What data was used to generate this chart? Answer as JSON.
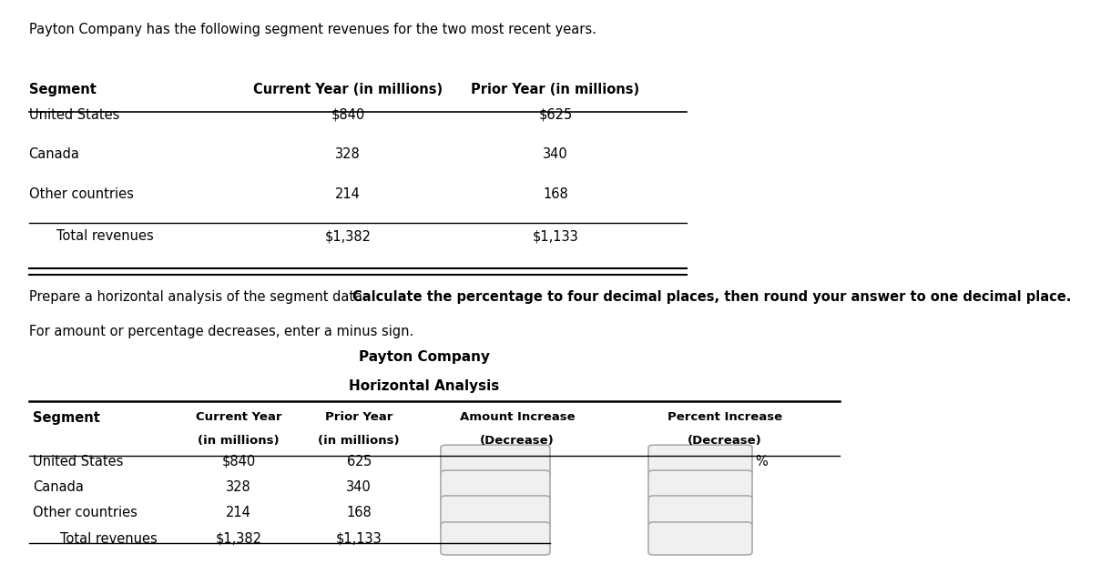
{
  "intro_text": "Payton Company has the following segment revenues for the two most recent years.",
  "instr_plain": "Prepare a horizontal analysis of the segment data. ",
  "instr_bold": "Calculate the percentage to four decimal places, then round your answer to one decimal place.",
  "instr_line2": "For amount or percentage decreases, enter a minus sign.",
  "top_headers": [
    "Segment",
    "Current Year (in millions)",
    "Prior Year (in millions)"
  ],
  "top_rows": [
    [
      "United States",
      "$840",
      "$625"
    ],
    [
      "Canada",
      "328",
      "340"
    ],
    [
      "Other countries",
      "214",
      "168"
    ],
    [
      "Total revenues",
      "$1,382",
      "$1,133"
    ]
  ],
  "bottom_title1": "Payton Company",
  "bottom_title2": "Horizontal Analysis",
  "bottom_rows": [
    [
      "United States",
      "$840",
      "$625"
    ],
    [
      "Canada",
      "328",
      "340"
    ],
    [
      "Other countries",
      "214",
      "168"
    ],
    [
      "Total revenues",
      "$1,382",
      "$1,133"
    ]
  ],
  "bg_color": "#ffffff",
  "text_color": "#000000",
  "line_color": "#000000",
  "box_face": "#f0f0f0",
  "box_edge": "#aaaaaa",
  "font_size": 10.5,
  "font_family": "DejaVu Sans"
}
